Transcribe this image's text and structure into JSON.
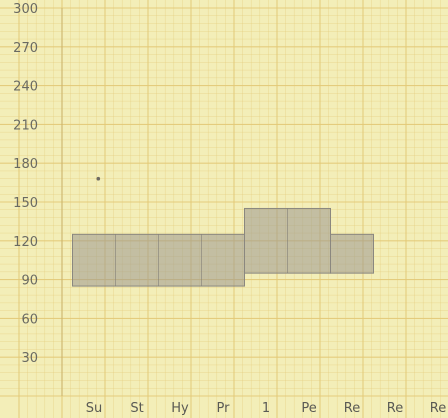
{
  "chart_data": {
    "type": "bar",
    "title": "",
    "xlabel": "",
    "ylabel": "",
    "ylim": [
      0,
      300
    ],
    "y_ticks": [
      30,
      60,
      90,
      120,
      150,
      180,
      210,
      240,
      270,
      300
    ],
    "categories": [
      "Su",
      "St",
      "Hy",
      "Pr",
      "1",
      "Pe",
      "Re",
      "Re",
      "Re"
    ],
    "grid": true,
    "bands": [
      {
        "x_start": 0,
        "x_end": 4,
        "low": 85,
        "high": 125
      },
      {
        "x_start": 4,
        "x_end": 6,
        "low": 95,
        "high": 145
      },
      {
        "x_start": 6,
        "x_end": 7,
        "low": 95,
        "high": 125
      }
    ],
    "markers": [
      {
        "x": 0.6,
        "y": 168
      }
    ],
    "colors": {
      "paper": "#f3eeb8",
      "grid": "#e3c977",
      "band": "#9b9890",
      "text": "#6a6a62"
    }
  }
}
